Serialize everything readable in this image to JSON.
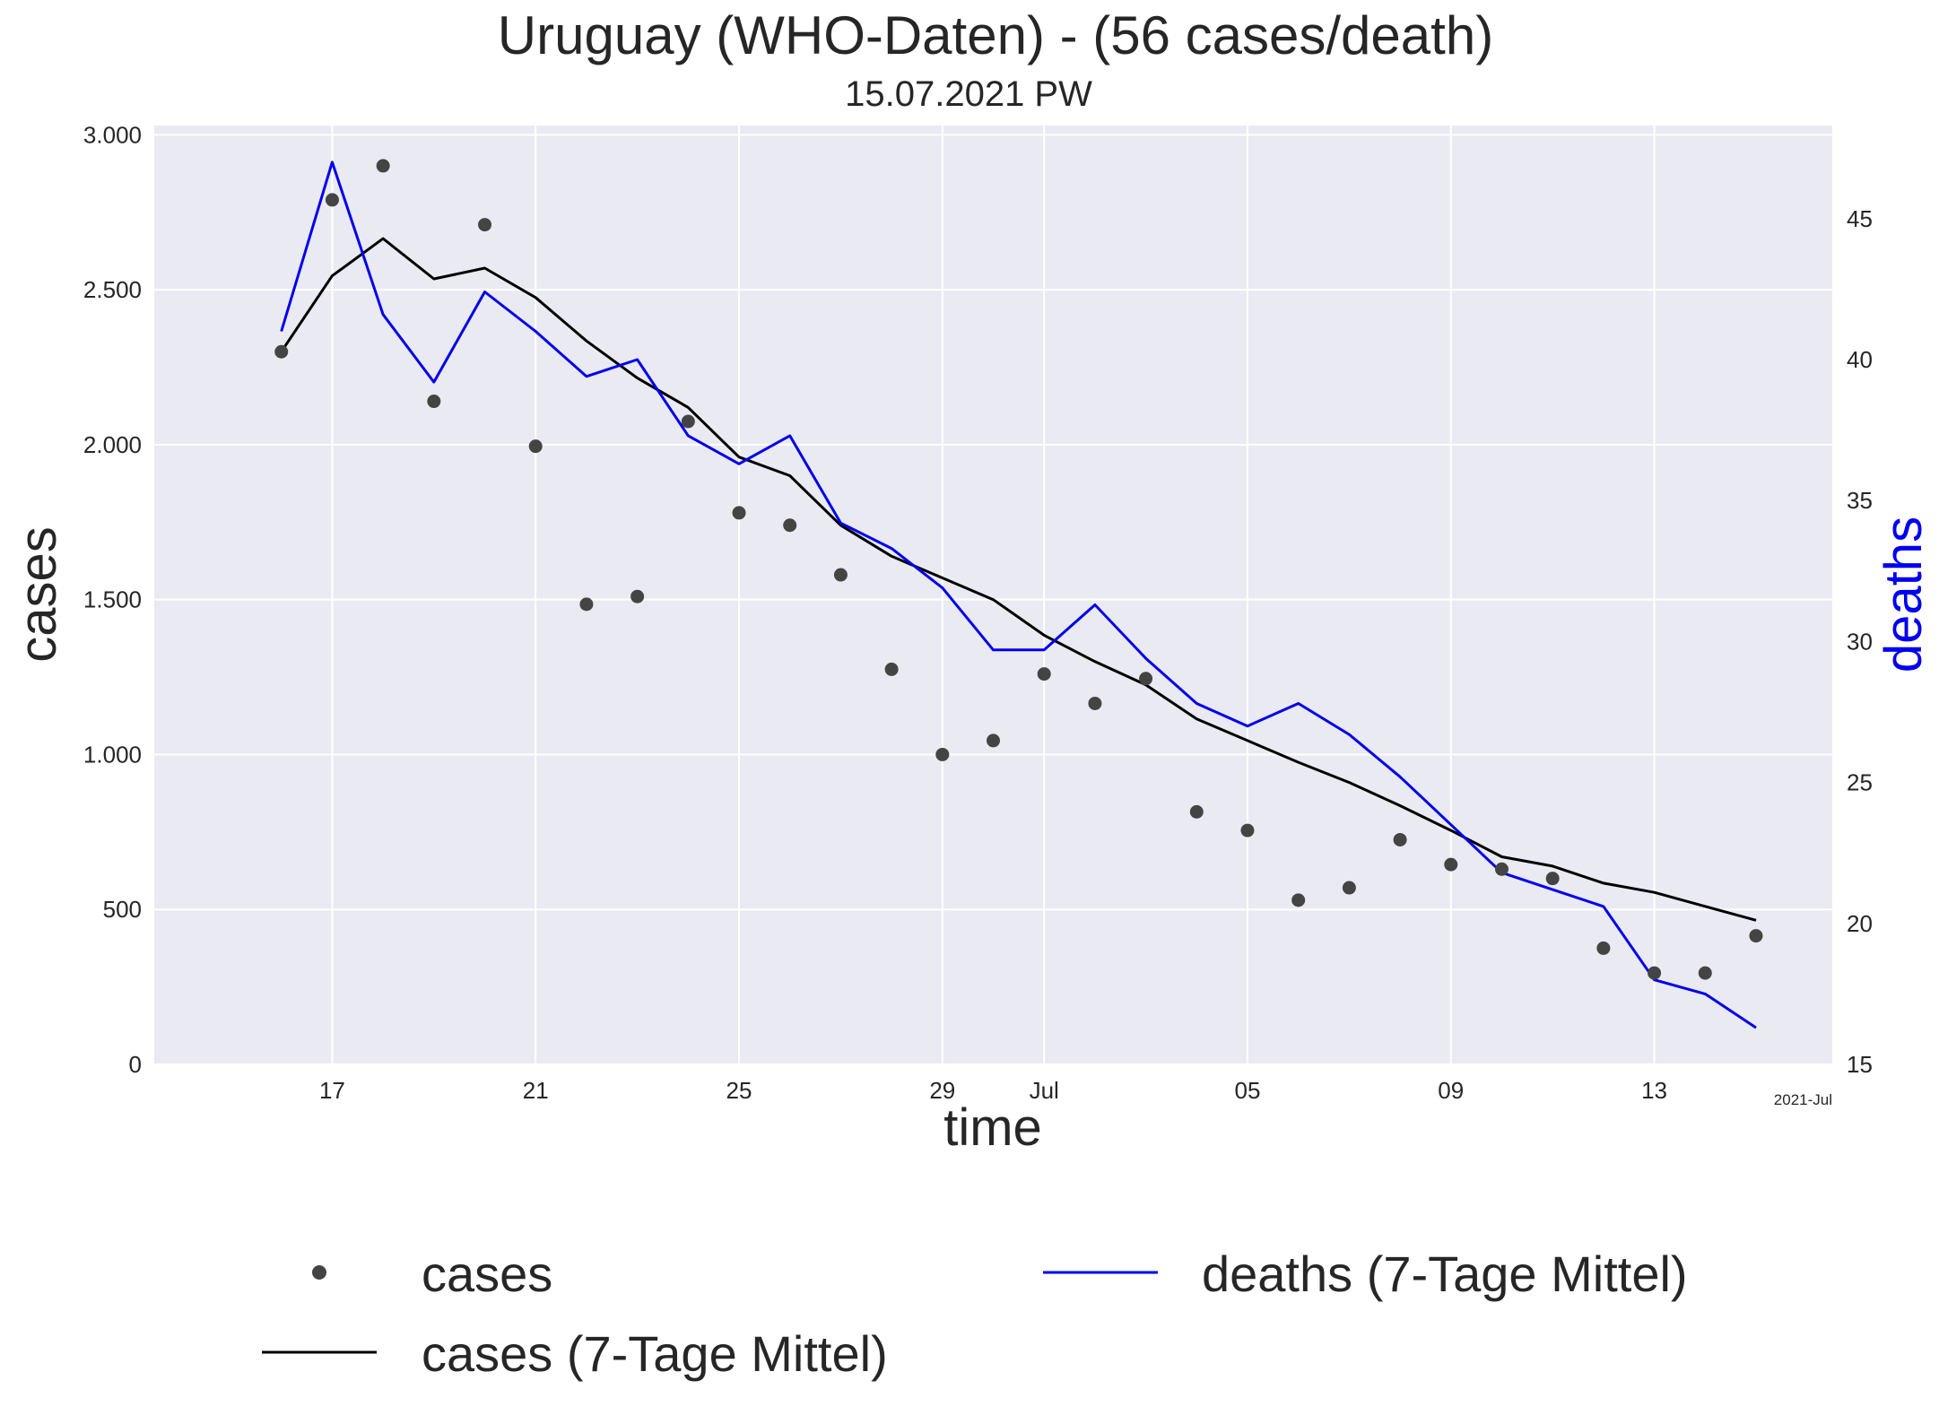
{
  "chart_data": {
    "type": "line",
    "title": "Uruguay (WHO-Daten) - (56 cases/death)",
    "subtitle": "15.07.2021 PW",
    "xlabel": "time",
    "ylabel_left": "cases",
    "ylabel_right": "deaths",
    "x_offset_label": "2021-Jul",
    "x_dates": [
      "2021-06-16",
      "2021-06-17",
      "2021-06-18",
      "2021-06-19",
      "2021-06-20",
      "2021-06-21",
      "2021-06-22",
      "2021-06-23",
      "2021-06-24",
      "2021-06-25",
      "2021-06-26",
      "2021-06-27",
      "2021-06-28",
      "2021-06-29",
      "2021-06-30",
      "2021-07-01",
      "2021-07-02",
      "2021-07-03",
      "2021-07-04",
      "2021-07-05",
      "2021-07-06",
      "2021-07-07",
      "2021-07-08",
      "2021-07-09",
      "2021-07-10",
      "2021-07-11",
      "2021-07-12",
      "2021-07-13",
      "2021-07-14",
      "2021-07-15"
    ],
    "x_ticks": [
      {
        "date": "2021-06-17",
        "label": "17"
      },
      {
        "date": "2021-06-21",
        "label": "21"
      },
      {
        "date": "2021-06-25",
        "label": "25"
      },
      {
        "date": "2021-06-29",
        "label": "29"
      },
      {
        "date": "2021-07-01",
        "label": "Jul"
      },
      {
        "date": "2021-07-05",
        "label": "05"
      },
      {
        "date": "2021-07-09",
        "label": "09"
      },
      {
        "date": "2021-07-13",
        "label": "13"
      }
    ],
    "xlim": [
      "2021-06-13T12:00",
      "2021-07-16T12:00"
    ],
    "ylim_left": [
      0,
      3030
    ],
    "ylim_right": [
      15,
      48.3
    ],
    "y_ticks_left": [
      {
        "value": 0,
        "label": "0"
      },
      {
        "value": 500,
        "label": "500"
      },
      {
        "value": 1000,
        "label": "1.000"
      },
      {
        "value": 1500,
        "label": "1.500"
      },
      {
        "value": 2000,
        "label": "2.000"
      },
      {
        "value": 2500,
        "label": "2.500"
      },
      {
        "value": 3000,
        "label": "3.000"
      }
    ],
    "y_ticks_right": [
      {
        "value": 15,
        "label": "15"
      },
      {
        "value": 20,
        "label": "20"
      },
      {
        "value": 25,
        "label": "25"
      },
      {
        "value": 30,
        "label": "30"
      },
      {
        "value": 35,
        "label": "35"
      },
      {
        "value": 40,
        "label": "40"
      },
      {
        "value": 45,
        "label": "45"
      }
    ],
    "grid": true,
    "legend_position": "bottom",
    "series": [
      {
        "name": "cases",
        "kind": "scatter",
        "axis": "left",
        "color": "#444444",
        "values": [
          2300,
          2790,
          2900,
          2140,
          2710,
          1995,
          1485,
          1510,
          2075,
          1780,
          1740,
          1580,
          1275,
          1000,
          1045,
          1260,
          1165,
          1245,
          815,
          755,
          530,
          570,
          725,
          645,
          630,
          600,
          375,
          295,
          295,
          415
        ]
      },
      {
        "name": "cases (7-Tage Mittel)",
        "kind": "line",
        "axis": "left",
        "color": "#000000",
        "values": [
          2300,
          2545,
          2665,
          2535,
          2570,
          2475,
          2335,
          2215,
          2120,
          1960,
          1900,
          1740,
          1640,
          1570,
          1500,
          1385,
          1300,
          1225,
          1115,
          1045,
          975,
          910,
          835,
          755,
          670,
          640,
          585,
          555,
          510,
          465
        ]
      },
      {
        "name": "deaths (7-Tage Mittel)",
        "kind": "line",
        "axis": "right",
        "color": "#0000ee",
        "values": [
          41.0,
          47.0,
          41.6,
          39.2,
          42.4,
          41.0,
          39.4,
          40.0,
          37.3,
          36.3,
          37.3,
          34.2,
          33.3,
          31.9,
          29.7,
          29.7,
          31.3,
          29.4,
          27.8,
          27.0,
          27.8,
          26.7,
          25.2,
          23.5,
          21.8,
          21.2,
          20.6,
          18.0,
          17.5,
          16.3
        ]
      }
    ]
  }
}
